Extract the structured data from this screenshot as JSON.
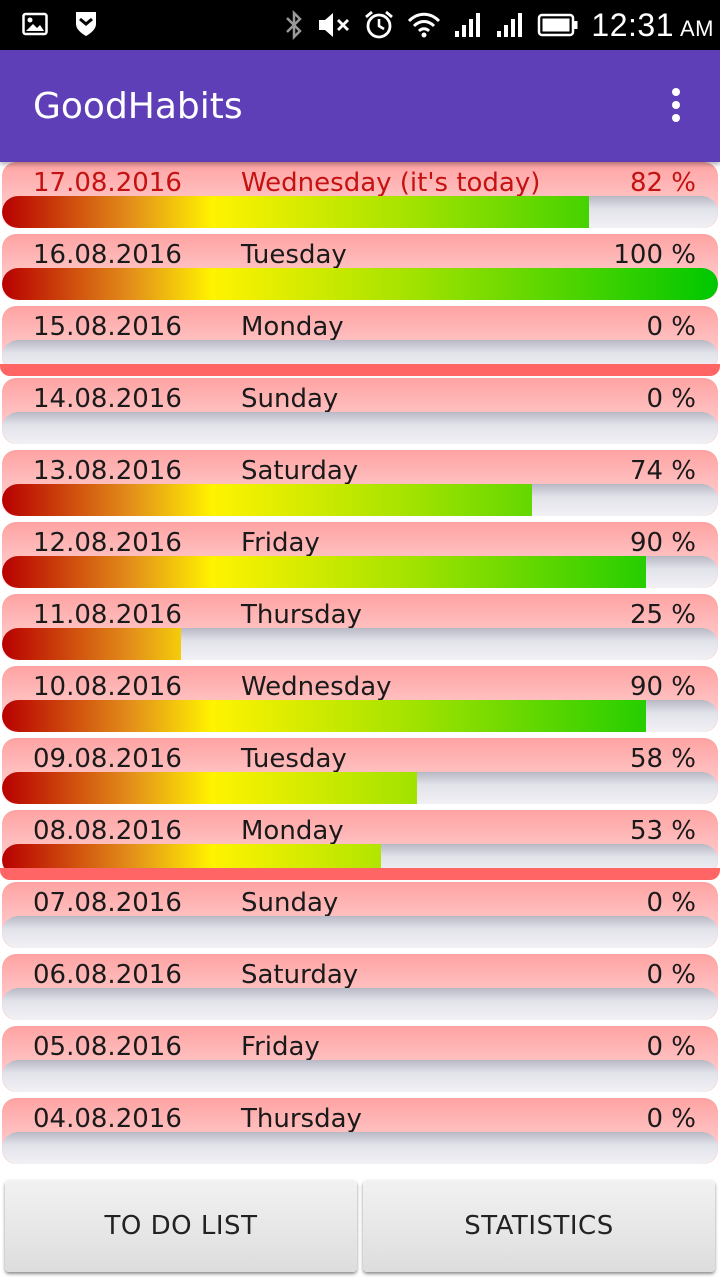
{
  "status_bar": {
    "time": "12:31",
    "ampm": "AM",
    "icons_left": [
      "image-icon",
      "shield-icon"
    ],
    "icons_right": [
      "bluetooth-icon",
      "mute-icon",
      "alarm-icon",
      "wifi-icon",
      "signal-icon",
      "signal-icon",
      "battery-icon"
    ]
  },
  "app_bar": {
    "title": "GoodHabits",
    "menu_icon": "more-vert-icon",
    "color": "#5e3fb7"
  },
  "colors": {
    "row_background": "#ffb9b9",
    "week_separator": "#ff6565",
    "today_text": "#c41212",
    "progress_start": "#b80000",
    "progress_mid": "#fff300",
    "progress_end": "#00c700",
    "track": "#e2e2ea"
  },
  "days": [
    {
      "date": "17.08.2016",
      "weekday": "Wednesday  (it's today)",
      "percent_label": "82 %",
      "progress": 0.82,
      "today": true,
      "week_start": false
    },
    {
      "date": "16.08.2016",
      "weekday": "Tuesday",
      "percent_label": "100 %",
      "progress": 1.0,
      "today": false,
      "week_start": false
    },
    {
      "date": "15.08.2016",
      "weekday": "Monday",
      "percent_label": "0 %",
      "progress": 0.0,
      "today": false,
      "week_start": false
    },
    {
      "date": "14.08.2016",
      "weekday": "Sunday",
      "percent_label": "0 %",
      "progress": 0.0,
      "today": false,
      "week_start": true
    },
    {
      "date": "13.08.2016",
      "weekday": "Saturday",
      "percent_label": "74 %",
      "progress": 0.74,
      "today": false,
      "week_start": false
    },
    {
      "date": "12.08.2016",
      "weekday": "Friday",
      "percent_label": "90 %",
      "progress": 0.9,
      "today": false,
      "week_start": false
    },
    {
      "date": "11.08.2016",
      "weekday": "Thursday",
      "percent_label": "25 %",
      "progress": 0.25,
      "today": false,
      "week_start": false
    },
    {
      "date": "10.08.2016",
      "weekday": "Wednesday",
      "percent_label": "90 %",
      "progress": 0.9,
      "today": false,
      "week_start": false
    },
    {
      "date": "09.08.2016",
      "weekday": "Tuesday",
      "percent_label": "58 %",
      "progress": 0.58,
      "today": false,
      "week_start": false
    },
    {
      "date": "08.08.2016",
      "weekday": "Monday",
      "percent_label": "53 %",
      "progress": 0.53,
      "today": false,
      "week_start": false
    },
    {
      "date": "07.08.2016",
      "weekday": "Sunday",
      "percent_label": "0 %",
      "progress": 0.0,
      "today": false,
      "week_start": true
    },
    {
      "date": "06.08.2016",
      "weekday": "Saturday",
      "percent_label": "0 %",
      "progress": 0.0,
      "today": false,
      "week_start": false
    },
    {
      "date": "05.08.2016",
      "weekday": "Friday",
      "percent_label": "0 %",
      "progress": 0.0,
      "today": false,
      "week_start": false
    },
    {
      "date": "04.08.2016",
      "weekday": "Thursday",
      "percent_label": "0 %",
      "progress": 0.0,
      "today": false,
      "week_start": false
    }
  ],
  "bottom_buttons": {
    "todo_label": "TO DO LIST",
    "statistics_label": "STATISTICS"
  }
}
